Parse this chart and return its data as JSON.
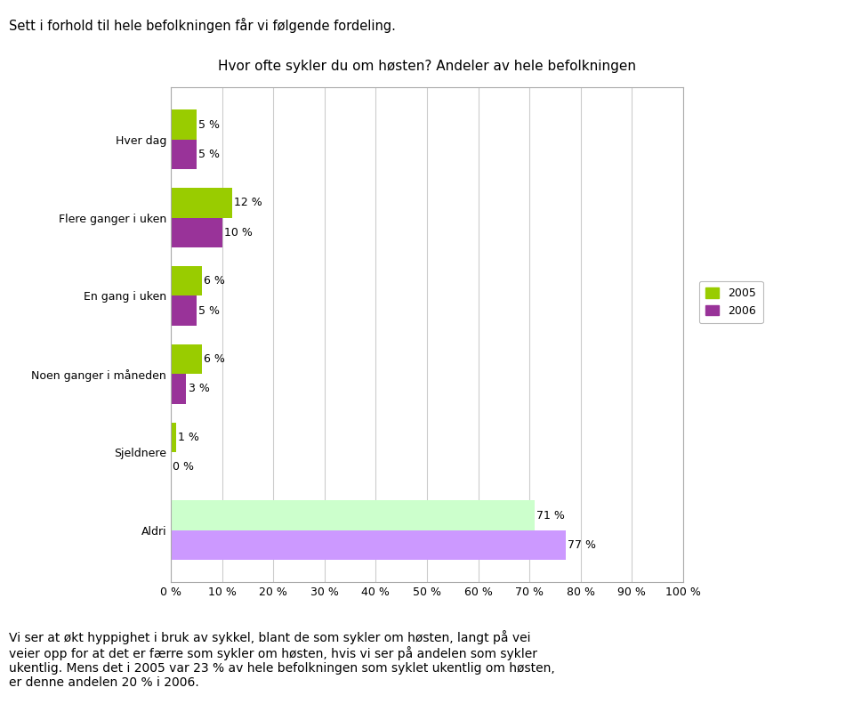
{
  "title": "Hvor ofte sykler du om høsten? Andeler av hele befolkningen",
  "top_text": "Sett i forhold til hele befolkningen får vi følgende fordeling.",
  "bottom_text": "Vi ser at økt hyppighet i bruk av sykkel, blant de som sykler om høsten, langt på vei\nveier opp for at det er færre som sykler om høsten, hvis vi ser på andelen som sykler\nukentlig. Mens det i 2005 var 23 % av hele befolkningen som syklet ukentlig om høsten,\ner denne andelen 20 % i 2006.",
  "categories": [
    "Aldri",
    "Sjeldnere",
    "Noen ganger i måneden",
    "En gang i uken",
    "Flere ganger i uken",
    "Hver dag"
  ],
  "values_2005": [
    71,
    1,
    6,
    6,
    12,
    5
  ],
  "values_2006": [
    77,
    0,
    3,
    5,
    10,
    5
  ],
  "labels_2005": [
    "71 %",
    "1 %",
    "6 %",
    "6 %",
    "12 %",
    "5 %"
  ],
  "labels_2006": [
    "77 %",
    "0 %",
    "3 %",
    "5 %",
    "10 %",
    "5 %"
  ],
  "color_2005": "#99cc00",
  "color_2005_aldri": "#ccffcc",
  "color_2006": "#993399",
  "color_2006_aldri": "#cc99ff",
  "background_color": "#ffffff",
  "legend_2005": "2005",
  "legend_2006": "2006",
  "xlim": [
    0,
    100
  ],
  "xticks": [
    0,
    10,
    20,
    30,
    40,
    50,
    60,
    70,
    80,
    90,
    100
  ],
  "xtick_labels": [
    "0 %",
    "10 %",
    "20 %",
    "30 %",
    "40 %",
    "50 %",
    "60 %",
    "70 %",
    "80 %",
    "90 %",
    "100 %"
  ],
  "bar_height": 0.38,
  "figsize": [
    9.6,
    8.18
  ],
  "dpi": 100
}
